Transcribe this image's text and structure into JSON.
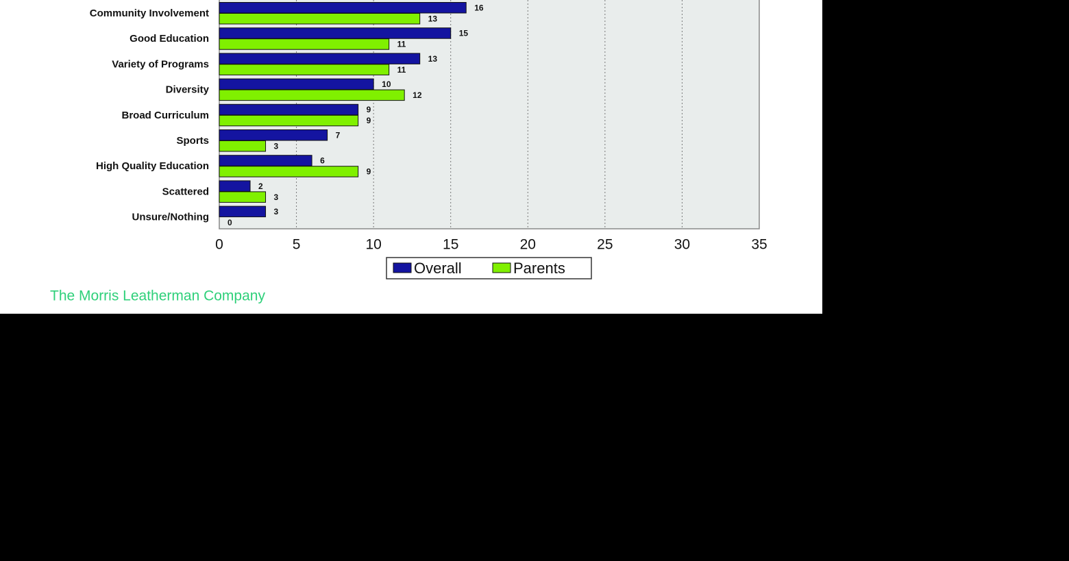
{
  "chart_data": {
    "type": "bar",
    "orientation": "horizontal",
    "categories": [
      "Community Involvement",
      "Good Education",
      "Variety of Programs",
      "Diversity",
      "Broad Curriculum",
      "Sports",
      "High Quality Education",
      "Scattered",
      "Unsure/Nothing"
    ],
    "series": [
      {
        "name": "Overall",
        "color": "#1414a0",
        "values": [
          16,
          15,
          13,
          10,
          9,
          7,
          6,
          2,
          3
        ]
      },
      {
        "name": "Parents",
        "color": "#80f000",
        "values": [
          13,
          11,
          11,
          12,
          9,
          3,
          9,
          3,
          0
        ]
      }
    ],
    "xlim": [
      0,
      35
    ],
    "xticks": [
      0,
      5,
      10,
      15,
      20,
      25,
      30,
      35
    ],
    "grid": true,
    "legend": "bottom",
    "source": "The Morris Leatherman Company"
  }
}
